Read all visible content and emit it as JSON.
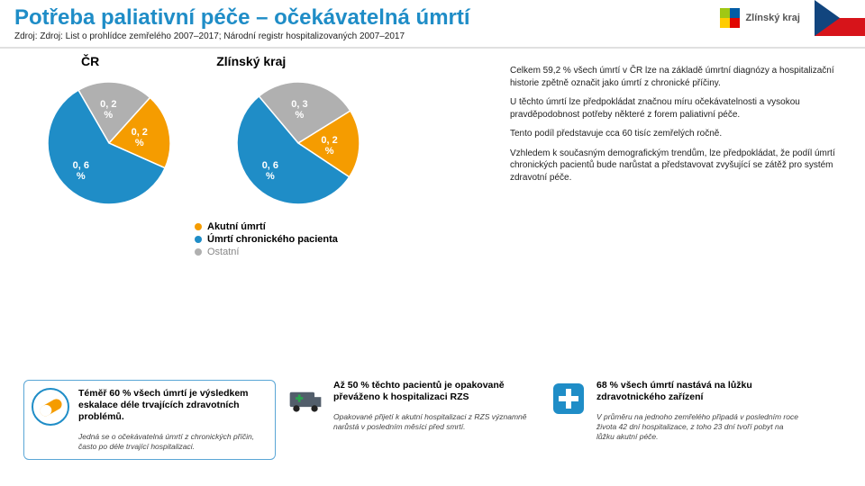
{
  "header": {
    "title": "Potřeba paliativní péče – očekávatelná úmrtí",
    "source": "Zdroj: Zdroj: List o prohlídce zemřelého 2007–2017; Národní registr hospitalizovaných 2007–2017",
    "region_label": "Zlínský kraj",
    "logo_colors": [
      "#a0c814",
      "#005ca5",
      "#ffcc00",
      "#e10600"
    ]
  },
  "charts": {
    "cr": {
      "title": "ČR",
      "slices": [
        {
          "label": "0, 2\n%",
          "value": 0.2,
          "color": "#b0b0b0"
        },
        {
          "label": "0, 2\n%",
          "value": 0.2,
          "color": "#f59c00"
        },
        {
          "label": "0, 6\n%",
          "value": 0.6,
          "color": "#1f8dc7"
        }
      ],
      "start_angle": -120
    },
    "zk": {
      "title": "Zlínský kraj",
      "slices": [
        {
          "label": "0, 3\n%",
          "value": 0.3,
          "color": "#b0b0b0"
        },
        {
          "label": "0, 2\n%",
          "value": 0.2,
          "color": "#f59c00"
        },
        {
          "label": "0, 6\n%",
          "value": 0.6,
          "color": "#1f8dc7"
        }
      ],
      "start_angle": -130
    },
    "legend": [
      {
        "label": "Akutní úmrtí",
        "color": "#f59c00",
        "bold": true
      },
      {
        "label": "Úmrtí chronického pacienta",
        "color": "#1f8dc7",
        "bold": true
      },
      {
        "label": "Ostatní",
        "color": "#b0b0b0",
        "bold": false
      }
    ]
  },
  "paragraphs": [
    "Celkem 59,2 % všech úmrtí v ČR lze na základě úmrtní diagnózy a hospitalizační historie zpětně označit jako úmrtí z chronické příčiny.",
    "U těchto úmrtí lze předpokládat značnou míru očekávatelnosti a vysokou pravděpodobnost potřeby některé z forem paliativní péče.",
    "Tento podíl představuje cca 60 tisíc zemřelých ročně.",
    "Vzhledem k současným demografickým trendům, lze předpokládat, že podíl úmrtí chronických pacientů bude narůstat a představovat zvyšující se zátěž pro systém zdravotní péče."
  ],
  "stats": [
    {
      "icon": "pill",
      "icon_colors": {
        "bg": "#f59c00",
        "fg": "#ffffff",
        "outline": "#1f8dc7"
      },
      "big": "Téměř 60 % všech úmrtí je výsledkem eskalace déle trvajících zdravotních problémů.",
      "small": "Jedná se o očekávatelná úmrtí z chronických příčin, často po déle trvající hospitalizaci."
    },
    {
      "icon": "ambulance",
      "icon_colors": {
        "bg": "#525e6b",
        "fg": "#ffffff",
        "accent": "#2aa44f"
      },
      "big": "Až 50 % těchto pacientů je opakovaně převáženo k hospitalizaci RZS",
      "small": "Opakované přijetí k akutní hospitalizaci z RZS významně narůstá v posledním měsíci před smrtí."
    },
    {
      "icon": "cross",
      "icon_colors": {
        "bg": "#1f8dc7",
        "fg": "#ffffff"
      },
      "big": "68 % všech úmrtí nastává na lůžku zdravotnického zařízení",
      "small": "V průměru na jednoho zemřelého připadá v posledním roce života 42 dní hospitalizace, z toho 23 dní tvoří pobyt na lůžku akutní péče."
    }
  ],
  "style": {
    "title_color": "#1f8dc7",
    "title_fontsize": 24,
    "body_fontsize": 10,
    "pie_radius": 68,
    "pie_inner": 0,
    "background": "#ffffff"
  }
}
